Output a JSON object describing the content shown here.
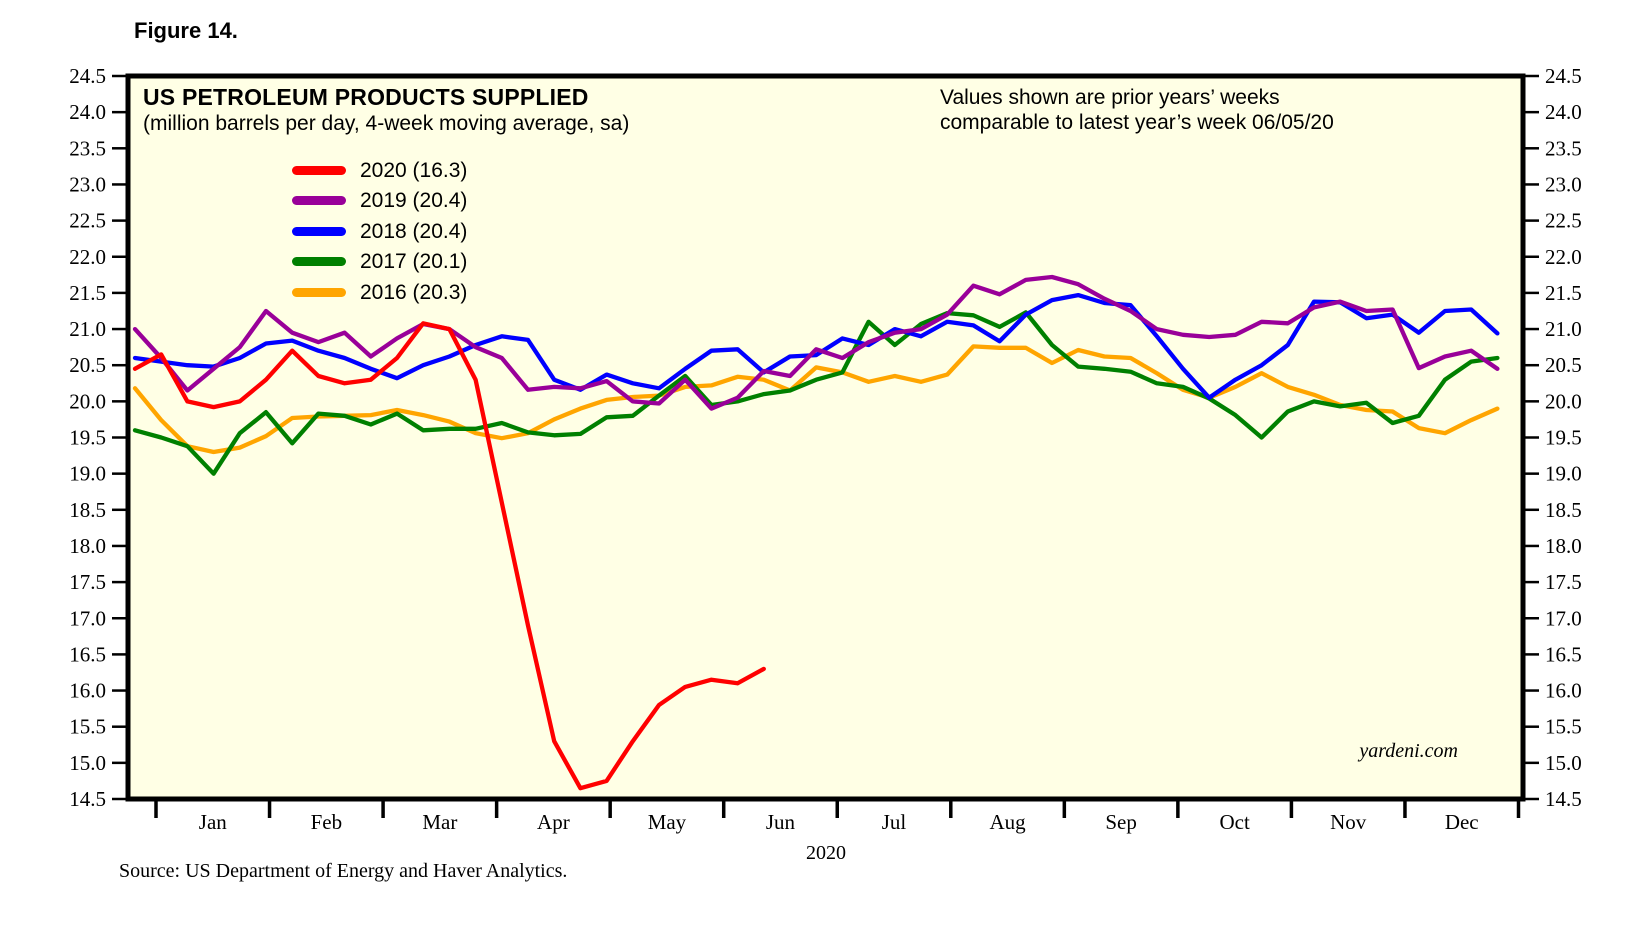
{
  "figure_label": "Figure 14.",
  "header": {
    "title": "US PETROLEUM PRODUCTS SUPPLIED",
    "subtitle": "(million barrels per day, 4-week moving average, sa)"
  },
  "annotation": {
    "line1": "Values shown are prior years’ weeks",
    "line2": "comparable to latest year’s week 06/05/20"
  },
  "watermark": "yardeni.com",
  "x_year_label": "2020",
  "source": "Source: US Department of Energy and Haver Analytics.",
  "colors": {
    "plot_background": "#FFFFE5",
    "border": "#000000",
    "red_2020": "#FF0000",
    "purple_2019": "#990099",
    "blue_2018": "#0000FF",
    "green_2017": "#008000",
    "orange_2016": "#FFA500"
  },
  "chart_data": {
    "type": "line",
    "title": "US PETROLEUM PRODUCTS SUPPLIED",
    "subtitle": "(million barrels per day, 4-week moving average, sa)",
    "xlabel": "2020",
    "ylabel": "",
    "ylim": [
      14.5,
      24.5
    ],
    "ytick_step": 0.5,
    "grid": false,
    "legend_position": "inside-top-left",
    "x_months": [
      "Jan",
      "Feb",
      "Mar",
      "Apr",
      "May",
      "Jun",
      "Jul",
      "Aug",
      "Sep",
      "Oct",
      "Nov",
      "Dec"
    ],
    "x_unit": "weekly",
    "weeks_per_year": 53,
    "series": [
      {
        "name": "2016",
        "label": "2016 (20.3)",
        "color": "#FFA500",
        "latest_comparable": 20.3,
        "values": [
          20.18,
          19.74,
          19.38,
          19.3,
          19.36,
          19.52,
          19.77,
          19.79,
          19.8,
          19.81,
          19.88,
          19.81,
          19.72,
          19.56,
          19.49,
          19.56,
          19.75,
          19.9,
          20.02,
          20.06,
          20.08,
          20.2,
          20.22,
          20.34,
          20.3,
          20.15,
          20.47,
          20.4,
          20.27,
          20.35,
          20.27,
          20.37,
          20.76,
          20.74,
          20.74,
          20.53,
          20.71,
          20.62,
          20.6,
          20.39,
          20.16,
          20.05,
          20.2,
          20.39,
          20.2,
          20.09,
          19.95,
          19.88,
          19.86,
          19.63,
          19.56,
          19.74,
          19.9
        ]
      },
      {
        "name": "2017",
        "label": "2017 (20.1)",
        "color": "#008000",
        "latest_comparable": 20.1,
        "values": [
          19.6,
          19.5,
          19.38,
          19.0,
          19.56,
          19.85,
          19.42,
          19.83,
          19.8,
          19.68,
          19.83,
          19.6,
          19.62,
          19.62,
          19.7,
          19.57,
          19.53,
          19.55,
          19.78,
          19.8,
          20.08,
          20.35,
          19.95,
          20.0,
          20.1,
          20.15,
          20.3,
          20.4,
          21.1,
          20.78,
          21.07,
          21.22,
          21.19,
          21.03,
          21.23,
          20.78,
          20.48,
          20.45,
          20.41,
          20.25,
          20.2,
          20.04,
          19.81,
          19.5,
          19.86,
          20.0,
          19.93,
          19.98,
          19.7,
          19.8,
          20.3,
          20.55,
          20.6
        ]
      },
      {
        "name": "2018",
        "label": "2018 (20.4)",
        "color": "#0000FF",
        "latest_comparable": 20.4,
        "values": [
          20.6,
          20.55,
          20.5,
          20.48,
          20.6,
          20.8,
          20.84,
          20.7,
          20.6,
          20.45,
          20.32,
          20.5,
          20.62,
          20.78,
          20.9,
          20.85,
          20.3,
          20.16,
          20.37,
          20.25,
          20.18,
          20.45,
          20.7,
          20.72,
          20.4,
          20.62,
          20.64,
          20.87,
          20.78,
          21.0,
          20.9,
          21.1,
          21.05,
          20.83,
          21.2,
          21.4,
          21.47,
          21.36,
          21.33,
          20.9,
          20.45,
          20.05,
          20.3,
          20.5,
          20.78,
          21.38,
          21.37,
          21.15,
          21.2,
          20.95,
          21.25,
          21.27,
          20.94
        ]
      },
      {
        "name": "2019",
        "label": "2019 (20.4)",
        "color": "#990099",
        "latest_comparable": 20.4,
        "values": [
          21.0,
          20.6,
          20.15,
          20.45,
          20.75,
          21.25,
          20.95,
          20.82,
          20.95,
          20.62,
          20.87,
          21.07,
          21.0,
          20.75,
          20.6,
          20.16,
          20.2,
          20.18,
          20.28,
          20.0,
          19.97,
          20.3,
          19.9,
          20.05,
          20.42,
          20.35,
          20.72,
          20.6,
          20.82,
          20.95,
          21.0,
          21.2,
          21.6,
          21.48,
          21.68,
          21.72,
          21.62,
          21.42,
          21.25,
          21.0,
          20.92,
          20.89,
          20.92,
          21.1,
          21.08,
          21.3,
          21.38,
          21.25,
          21.27,
          20.46,
          20.62,
          20.7,
          20.45
        ]
      },
      {
        "name": "2020",
        "label": "2020 (16.3)",
        "color": "#FF0000",
        "latest_comparable": 16.3,
        "values": [
          20.45,
          20.65,
          20.0,
          19.92,
          20.0,
          20.3,
          20.7,
          20.35,
          20.25,
          20.3,
          20.6,
          21.08,
          21.0,
          20.3,
          18.6,
          16.9,
          15.3,
          14.65,
          14.75,
          15.3,
          15.8,
          16.05,
          16.15,
          16.1,
          16.3
        ]
      }
    ]
  }
}
